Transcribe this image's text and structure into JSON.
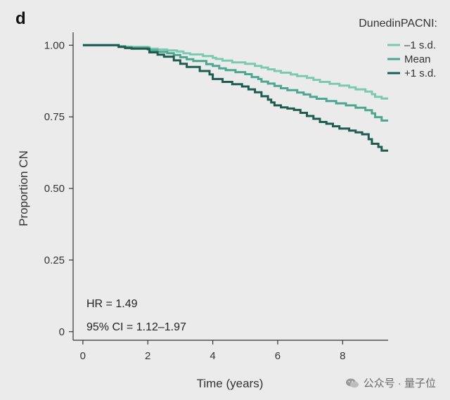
{
  "panel_label": "d",
  "watermark": {
    "text": "公众号 · 量子位",
    "logo_icon": "wechat-icon"
  },
  "chart_data": {
    "type": "line",
    "subtype": "kaplan-meier step",
    "xlabel": "Time (years)",
    "ylabel": "Proportion CN",
    "xlim": [
      -0.3,
      9.4
    ],
    "ylim": [
      -0.03,
      1.045
    ],
    "x_ticks": [
      {
        "value": 0,
        "label": "0"
      },
      {
        "value": 2,
        "label": "2"
      },
      {
        "value": 4,
        "label": "4"
      },
      {
        "value": 6,
        "label": "6"
      },
      {
        "value": 8,
        "label": "8"
      }
    ],
    "y_ticks": [
      {
        "value": 0,
        "label": "0"
      },
      {
        "value": 0.25,
        "label": "0.25"
      },
      {
        "value": 0.5,
        "label": "0.50"
      },
      {
        "value": 0.75,
        "label": "0.75"
      },
      {
        "value": 1.0,
        "label": "1.00"
      }
    ],
    "grid": false,
    "legend": {
      "title": "DunedinPACNI:",
      "position": "top-right",
      "entries": [
        "–1 s.d.",
        "Mean",
        "+1 s.d."
      ]
    },
    "annotations": [
      "HR = 1.49",
      "95% CI = 1.12–1.97"
    ],
    "series": [
      {
        "name": "–1 s.d.",
        "color": "#7cc9b1",
        "points": [
          [
            0,
            1.0
          ],
          [
            1.0,
            1.0
          ],
          [
            1.1,
            0.997
          ],
          [
            1.3,
            0.995
          ],
          [
            1.5,
            0.994
          ],
          [
            2.0,
            0.993
          ],
          [
            2.05,
            0.988
          ],
          [
            2.3,
            0.985
          ],
          [
            2.6,
            0.982
          ],
          [
            2.9,
            0.978
          ],
          [
            3.1,
            0.972
          ],
          [
            3.3,
            0.968
          ],
          [
            3.7,
            0.962
          ],
          [
            4.0,
            0.956
          ],
          [
            4.1,
            0.952
          ],
          [
            4.3,
            0.946
          ],
          [
            4.6,
            0.94
          ],
          [
            5.0,
            0.935
          ],
          [
            5.3,
            0.928
          ],
          [
            5.5,
            0.922
          ],
          [
            5.7,
            0.916
          ],
          [
            5.9,
            0.91
          ],
          [
            6.1,
            0.904
          ],
          [
            6.4,
            0.898
          ],
          [
            6.6,
            0.892
          ],
          [
            6.9,
            0.886
          ],
          [
            7.1,
            0.879
          ],
          [
            7.3,
            0.872
          ],
          [
            7.6,
            0.865
          ],
          [
            7.9,
            0.859
          ],
          [
            8.2,
            0.853
          ],
          [
            8.4,
            0.846
          ],
          [
            8.7,
            0.838
          ],
          [
            8.9,
            0.829
          ],
          [
            9.0,
            0.82
          ],
          [
            9.2,
            0.814
          ],
          [
            9.4,
            0.814
          ]
        ]
      },
      {
        "name": "Mean",
        "color": "#4ca690",
        "points": [
          [
            0,
            1.0
          ],
          [
            1.0,
            1.0
          ],
          [
            1.1,
            0.996
          ],
          [
            1.3,
            0.993
          ],
          [
            1.5,
            0.991
          ],
          [
            2.0,
            0.99
          ],
          [
            2.05,
            0.982
          ],
          [
            2.3,
            0.977
          ],
          [
            2.6,
            0.972
          ],
          [
            2.8,
            0.966
          ],
          [
            3.0,
            0.958
          ],
          [
            3.2,
            0.951
          ],
          [
            3.4,
            0.945
          ],
          [
            3.8,
            0.934
          ],
          [
            4.0,
            0.928
          ],
          [
            4.2,
            0.919
          ],
          [
            4.4,
            0.913
          ],
          [
            4.7,
            0.906
          ],
          [
            5.0,
            0.899
          ],
          [
            5.2,
            0.889
          ],
          [
            5.4,
            0.882
          ],
          [
            5.5,
            0.873
          ],
          [
            5.7,
            0.866
          ],
          [
            5.9,
            0.858
          ],
          [
            6.1,
            0.85
          ],
          [
            6.3,
            0.843
          ],
          [
            6.6,
            0.835
          ],
          [
            6.8,
            0.828
          ],
          [
            7.0,
            0.82
          ],
          [
            7.2,
            0.813
          ],
          [
            7.5,
            0.805
          ],
          [
            7.8,
            0.797
          ],
          [
            8.1,
            0.79
          ],
          [
            8.4,
            0.782
          ],
          [
            8.7,
            0.773
          ],
          [
            8.9,
            0.762
          ],
          [
            9.0,
            0.749
          ],
          [
            9.2,
            0.737
          ],
          [
            9.4,
            0.737
          ]
        ]
      },
      {
        "name": "+1 s.d.",
        "color": "#1e5c50",
        "points": [
          [
            0,
            1.0
          ],
          [
            1.0,
            1.0
          ],
          [
            1.1,
            0.994
          ],
          [
            1.3,
            0.99
          ],
          [
            1.5,
            0.988
          ],
          [
            2.0,
            0.986
          ],
          [
            2.05,
            0.975
          ],
          [
            2.3,
            0.967
          ],
          [
            2.5,
            0.96
          ],
          [
            2.8,
            0.947
          ],
          [
            3.0,
            0.935
          ],
          [
            3.2,
            0.924
          ],
          [
            3.6,
            0.91
          ],
          [
            3.9,
            0.898
          ],
          [
            4.0,
            0.882
          ],
          [
            4.3,
            0.872
          ],
          [
            4.6,
            0.864
          ],
          [
            4.9,
            0.856
          ],
          [
            5.1,
            0.846
          ],
          [
            5.3,
            0.836
          ],
          [
            5.5,
            0.822
          ],
          [
            5.7,
            0.81
          ],
          [
            5.8,
            0.8
          ],
          [
            5.9,
            0.79
          ],
          [
            6.1,
            0.783
          ],
          [
            6.3,
            0.779
          ],
          [
            6.5,
            0.774
          ],
          [
            6.7,
            0.764
          ],
          [
            6.9,
            0.753
          ],
          [
            7.1,
            0.743
          ],
          [
            7.3,
            0.732
          ],
          [
            7.5,
            0.726
          ],
          [
            7.7,
            0.717
          ],
          [
            7.9,
            0.709
          ],
          [
            8.2,
            0.702
          ],
          [
            8.4,
            0.696
          ],
          [
            8.6,
            0.689
          ],
          [
            8.8,
            0.672
          ],
          [
            8.9,
            0.656
          ],
          [
            9.1,
            0.645
          ],
          [
            9.2,
            0.632
          ],
          [
            9.4,
            0.632
          ]
        ]
      }
    ]
  }
}
